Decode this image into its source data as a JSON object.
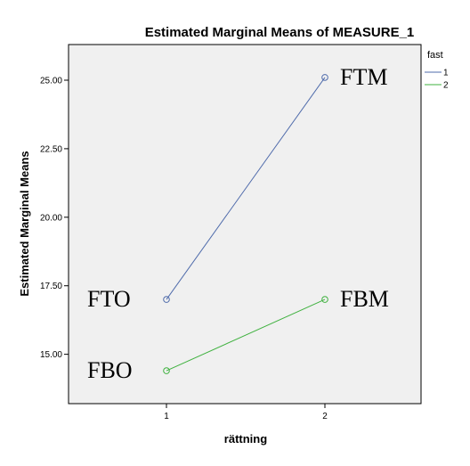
{
  "chart_data": {
    "type": "line",
    "title": "Estimated Marginal Means of MEASURE_1",
    "xlabel": "rättning",
    "ylabel": "Estimated Marginal Means",
    "categories": [
      "1",
      "2"
    ],
    "ylim": [
      13.2,
      26.3
    ],
    "yticks": [
      "15.00",
      "17.50",
      "20.00",
      "22.50",
      "25.00"
    ],
    "legend_title": "fast",
    "legend_position": "right",
    "grid": false,
    "series": [
      {
        "name": "1",
        "values": [
          17.0,
          25.1
        ],
        "color": "#4f6bab"
      },
      {
        "name": "2",
        "values": [
          14.4,
          17.0
        ],
        "color": "#3fb13f"
      }
    ],
    "annotations": [
      {
        "text": "FTO",
        "x": "1",
        "y": 17.0,
        "anchor": "left"
      },
      {
        "text": "FTM",
        "x": "2",
        "y": 25.1,
        "anchor": "right"
      },
      {
        "text": "FBO",
        "x": "1",
        "y": 14.4,
        "anchor": "left"
      },
      {
        "text": "FBM",
        "x": "2",
        "y": 17.0,
        "anchor": "right"
      }
    ]
  }
}
